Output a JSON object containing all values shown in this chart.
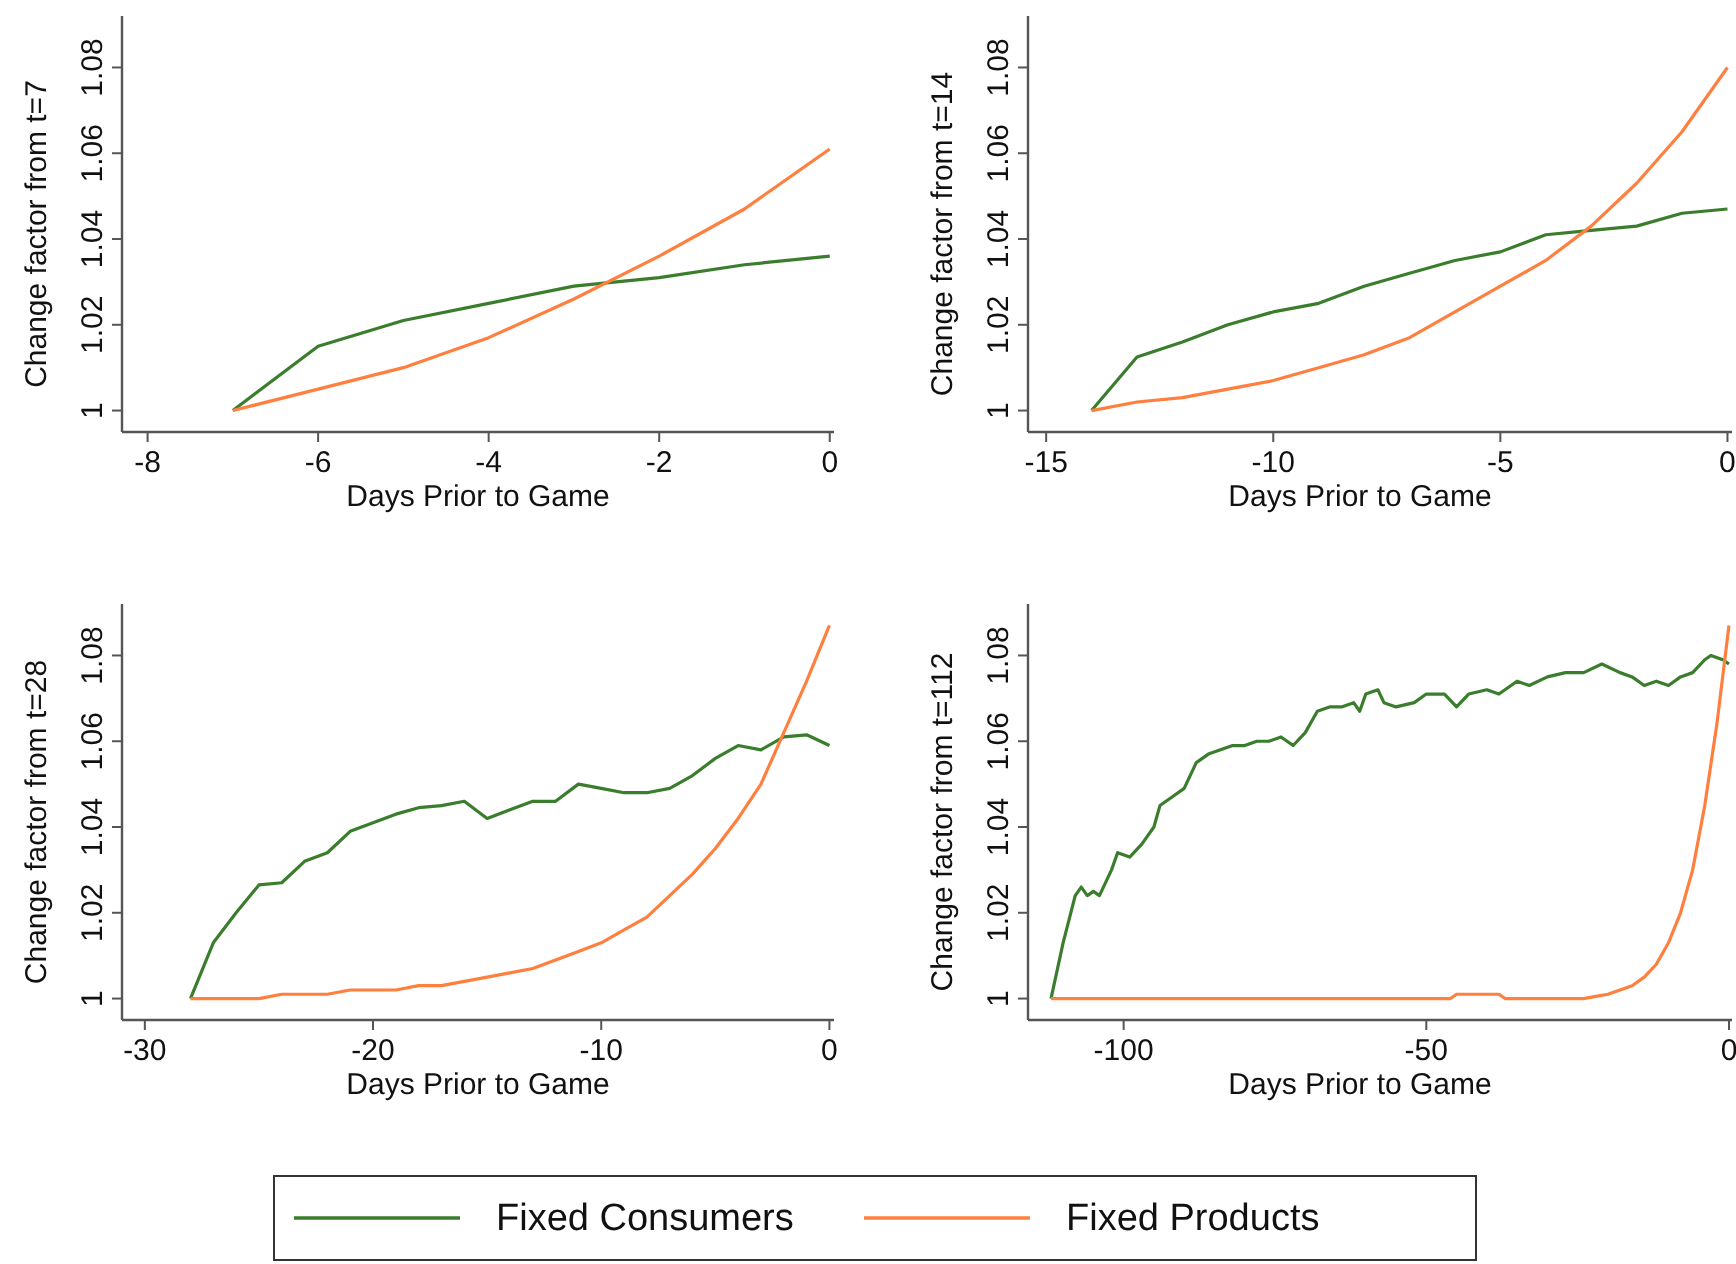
{
  "chart_data": [
    {
      "type": "line",
      "xlabel": "Days Prior to Game",
      "ylabel": "Change factor from t=7",
      "xlim": [
        -8.3,
        0.05
      ],
      "xticks": [
        -8,
        -6,
        -4,
        -2,
        0
      ],
      "ylim": [
        0.995,
        1.092
      ],
      "yticks": [
        1,
        1.02,
        1.04,
        1.06,
        1.08
      ],
      "x": [
        -7,
        -6,
        -5,
        -4,
        -3,
        -2,
        -1,
        0
      ],
      "series": [
        {
          "color": "#3a7d2c",
          "values": [
            1,
            1.015,
            1.021,
            1.025,
            1.029,
            1.031,
            1.034,
            1.036
          ]
        },
        {
          "color": "#ff7f3f",
          "values": [
            1,
            1.005,
            1.01,
            1.017,
            1.026,
            1.036,
            1.047,
            1.061
          ]
        }
      ]
    },
    {
      "type": "line",
      "xlabel": "Days Prior to Game",
      "ylabel": "Change factor from t=14",
      "xlim": [
        -15.4,
        0.1
      ],
      "xticks": [
        -15,
        -10,
        -5,
        0
      ],
      "ylim": [
        0.995,
        1.092
      ],
      "yticks": [
        1,
        1.02,
        1.04,
        1.06,
        1.08
      ],
      "x": [
        -14,
        -13,
        -12,
        -11,
        -10,
        -9,
        -8,
        -7,
        -6,
        -5,
        -4,
        -3,
        -2,
        -1,
        0
      ],
      "series": [
        {
          "color": "#3a7d2c",
          "values": [
            1,
            1.0125,
            1.016,
            1.02,
            1.023,
            1.025,
            1.029,
            1.032,
            1.035,
            1.037,
            1.041,
            1.042,
            1.043,
            1.046,
            1.047
          ]
        },
        {
          "color": "#ff7f3f",
          "values": [
            1,
            1.002,
            1.003,
            1.005,
            1.007,
            1.01,
            1.013,
            1.017,
            1.023,
            1.029,
            1.035,
            1.043,
            1.053,
            1.065,
            1.08
          ]
        }
      ]
    },
    {
      "type": "line",
      "xlabel": "Days Prior to Game",
      "ylabel": "Change factor from t=28",
      "xlim": [
        -31,
        0.2
      ],
      "xticks": [
        -30,
        -20,
        -10,
        0
      ],
      "ylim": [
        0.995,
        1.092
      ],
      "yticks": [
        1,
        1.02,
        1.04,
        1.06,
        1.08
      ],
      "x": [
        -28,
        -27,
        -26,
        -25,
        -24,
        -23,
        -22,
        -21,
        -20,
        -19,
        -18,
        -17,
        -16,
        -15,
        -14,
        -13,
        -12,
        -11,
        -10,
        -9,
        -8,
        -7,
        -6,
        -5,
        -4,
        -3,
        -2,
        -1,
        0
      ],
      "series": [
        {
          "color": "#3a7d2c",
          "values": [
            1,
            1.013,
            1.02,
            1.0265,
            1.027,
            1.032,
            1.034,
            1.039,
            1.041,
            1.043,
            1.0445,
            1.045,
            1.046,
            1.042,
            1.044,
            1.046,
            1.046,
            1.05,
            1.049,
            1.048,
            1.048,
            1.049,
            1.052,
            1.056,
            1.059,
            1.058,
            1.061,
            1.0615,
            1.059
          ]
        },
        {
          "color": "#ff7f3f",
          "values": [
            1,
            1,
            1,
            1,
            1.001,
            1.001,
            1.001,
            1.002,
            1.002,
            1.002,
            1.003,
            1.003,
            1.004,
            1.005,
            1.006,
            1.007,
            1.009,
            1.011,
            1.013,
            1.016,
            1.019,
            1.024,
            1.029,
            1.035,
            1.042,
            1.05,
            1.062,
            1.074,
            1.087
          ]
        }
      ]
    },
    {
      "type": "line",
      "xlabel": "Days Prior to Game",
      "ylabel": "Change factor from t=112",
      "xlim": [
        -115.8,
        0.5
      ],
      "xticks": [
        -100,
        -50,
        0
      ],
      "ylim": [
        0.995,
        1.092
      ],
      "yticks": [
        1,
        1.02,
        1.04,
        1.06,
        1.08
      ],
      "legend": "bottom",
      "series": [
        {
          "name": "Fixed Consumers",
          "color": "#3a7d2c",
          "x": [
            -112,
            -110,
            -108,
            -107,
            -106,
            -105,
            -104,
            -102,
            -101,
            -99,
            -97,
            -95,
            -94,
            -92,
            -90,
            -88,
            -86,
            -84,
            -82,
            -80,
            -78,
            -76,
            -74,
            -72,
            -70,
            -68,
            -66,
            -64,
            -62,
            -61,
            -60,
            -58,
            -57,
            -55,
            -52,
            -50,
            -47,
            -45,
            -43,
            -40,
            -38,
            -35,
            -33,
            -30,
            -27,
            -24,
            -21,
            -18,
            -16,
            -14,
            -12,
            -10,
            -8,
            -6,
            -4,
            -3,
            -1,
            0
          ],
          "values": [
            1,
            1.013,
            1.024,
            1.026,
            1.024,
            1.025,
            1.024,
            1.03,
            1.034,
            1.033,
            1.036,
            1.04,
            1.045,
            1.047,
            1.049,
            1.055,
            1.057,
            1.058,
            1.059,
            1.059,
            1.06,
            1.06,
            1.061,
            1.059,
            1.062,
            1.067,
            1.068,
            1.068,
            1.069,
            1.067,
            1.071,
            1.072,
            1.069,
            1.068,
            1.069,
            1.071,
            1.071,
            1.068,
            1.071,
            1.072,
            1.071,
            1.074,
            1.073,
            1.075,
            1.076,
            1.076,
            1.078,
            1.076,
            1.075,
            1.073,
            1.074,
            1.073,
            1.075,
            1.076,
            1.079,
            1.08,
            1.079,
            1.078
          ]
        },
        {
          "name": "Fixed Products",
          "color": "#ff7f3f",
          "x": [
            -112,
            -46,
            -45,
            -38,
            -37,
            -24,
            -22,
            -20,
            -18,
            -16,
            -14,
            -12,
            -10,
            -8,
            -6,
            -4,
            -2,
            0
          ],
          "values": [
            1,
            1,
            1.001,
            1.001,
            1,
            1,
            1.0005,
            1.001,
            1.002,
            1.003,
            1.005,
            1.008,
            1.013,
            1.02,
            1.03,
            1.045,
            1.064,
            1.087
          ]
        }
      ]
    }
  ]
}
